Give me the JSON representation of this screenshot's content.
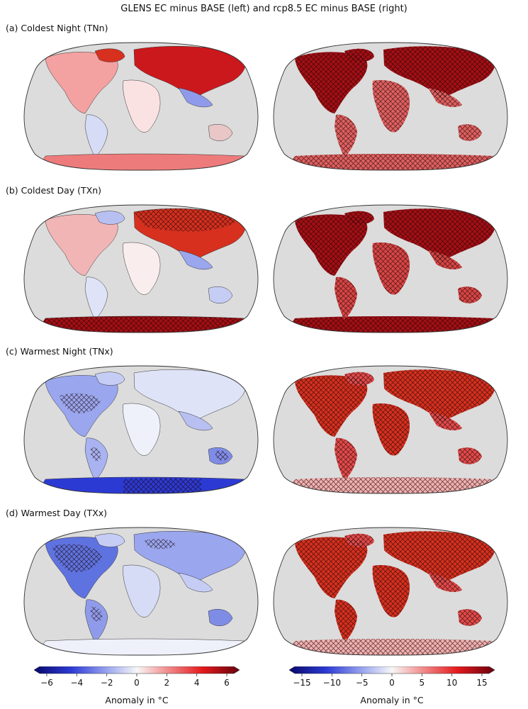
{
  "figure": {
    "title": "GLENS EC minus BASE (left) and rcp8.5 EC minus BASE (right)"
  },
  "panels": [
    {
      "label": "(a) Coldest Night (TNn)"
    },
    {
      "label": "(b) Coldest Day (TXn)"
    },
    {
      "label": "(c) Warmest Night (TNx)"
    },
    {
      "label": "(d) Warmest Day (TXx)"
    }
  ],
  "colorbars": {
    "left": {
      "ticks": [
        "−6",
        "−4",
        "−2",
        "0",
        "2",
        "4",
        "6"
      ],
      "label": "Anomaly in °C",
      "range": [
        -6,
        6
      ]
    },
    "right": {
      "ticks": [
        "−15",
        "−10",
        "−5",
        "0",
        "5",
        "10",
        "15"
      ],
      "label": "Anomaly in °C",
      "range": [
        -15,
        15
      ]
    }
  },
  "colors": {
    "ocean": "#dcdcdc",
    "strong_red": "#a50f15",
    "mid_red": "#d7301f",
    "light_red": "#f4a582",
    "white": "#f7f7f7",
    "light_blue": "#c6cdf5",
    "mid_blue": "#5f73e0",
    "strong_blue": "#1a1aa5"
  }
}
